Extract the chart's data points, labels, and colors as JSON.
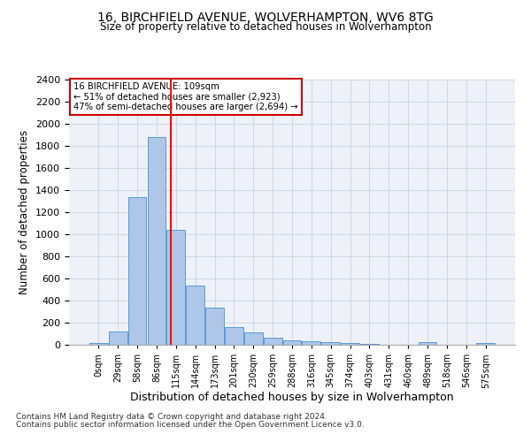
{
  "title": "16, BIRCHFIELD AVENUE, WOLVERHAMPTON, WV6 8TG",
  "subtitle": "Size of property relative to detached houses in Wolverhampton",
  "xlabel": "Distribution of detached houses by size in Wolverhampton",
  "ylabel": "Number of detached properties",
  "bin_labels": [
    "0sqm",
    "29sqm",
    "58sqm",
    "86sqm",
    "115sqm",
    "144sqm",
    "173sqm",
    "201sqm",
    "230sqm",
    "259sqm",
    "288sqm",
    "316sqm",
    "345sqm",
    "374sqm",
    "403sqm",
    "431sqm",
    "460sqm",
    "489sqm",
    "518sqm",
    "546sqm",
    "575sqm"
  ],
  "bar_heights": [
    15,
    120,
    1340,
    1880,
    1040,
    540,
    335,
    160,
    110,
    65,
    40,
    30,
    25,
    20,
    5,
    0,
    0,
    25,
    0,
    0,
    15
  ],
  "bar_color": "#aec6e8",
  "bar_edgecolor": "#5b9bd5",
  "grid_color": "#d0d8e8",
  "bg_color": "#eef2f8",
  "red_line_x": 3.75,
  "annotation_title": "16 BIRCHFIELD AVENUE: 109sqm",
  "annotation_line1": "← 51% of detached houses are smaller (2,923)",
  "annotation_line2": "47% of semi-detached houses are larger (2,694) →",
  "annotation_box_color": "#ffffff",
  "annotation_box_edgecolor": "#cc0000",
  "ylim": [
    0,
    2400
  ],
  "yticks": [
    0,
    200,
    400,
    600,
    800,
    1000,
    1200,
    1400,
    1600,
    1800,
    2000,
    2200,
    2400
  ],
  "footnote1": "Contains HM Land Registry data © Crown copyright and database right 2024.",
  "footnote2": "Contains public sector information licensed under the Open Government Licence v3.0."
}
